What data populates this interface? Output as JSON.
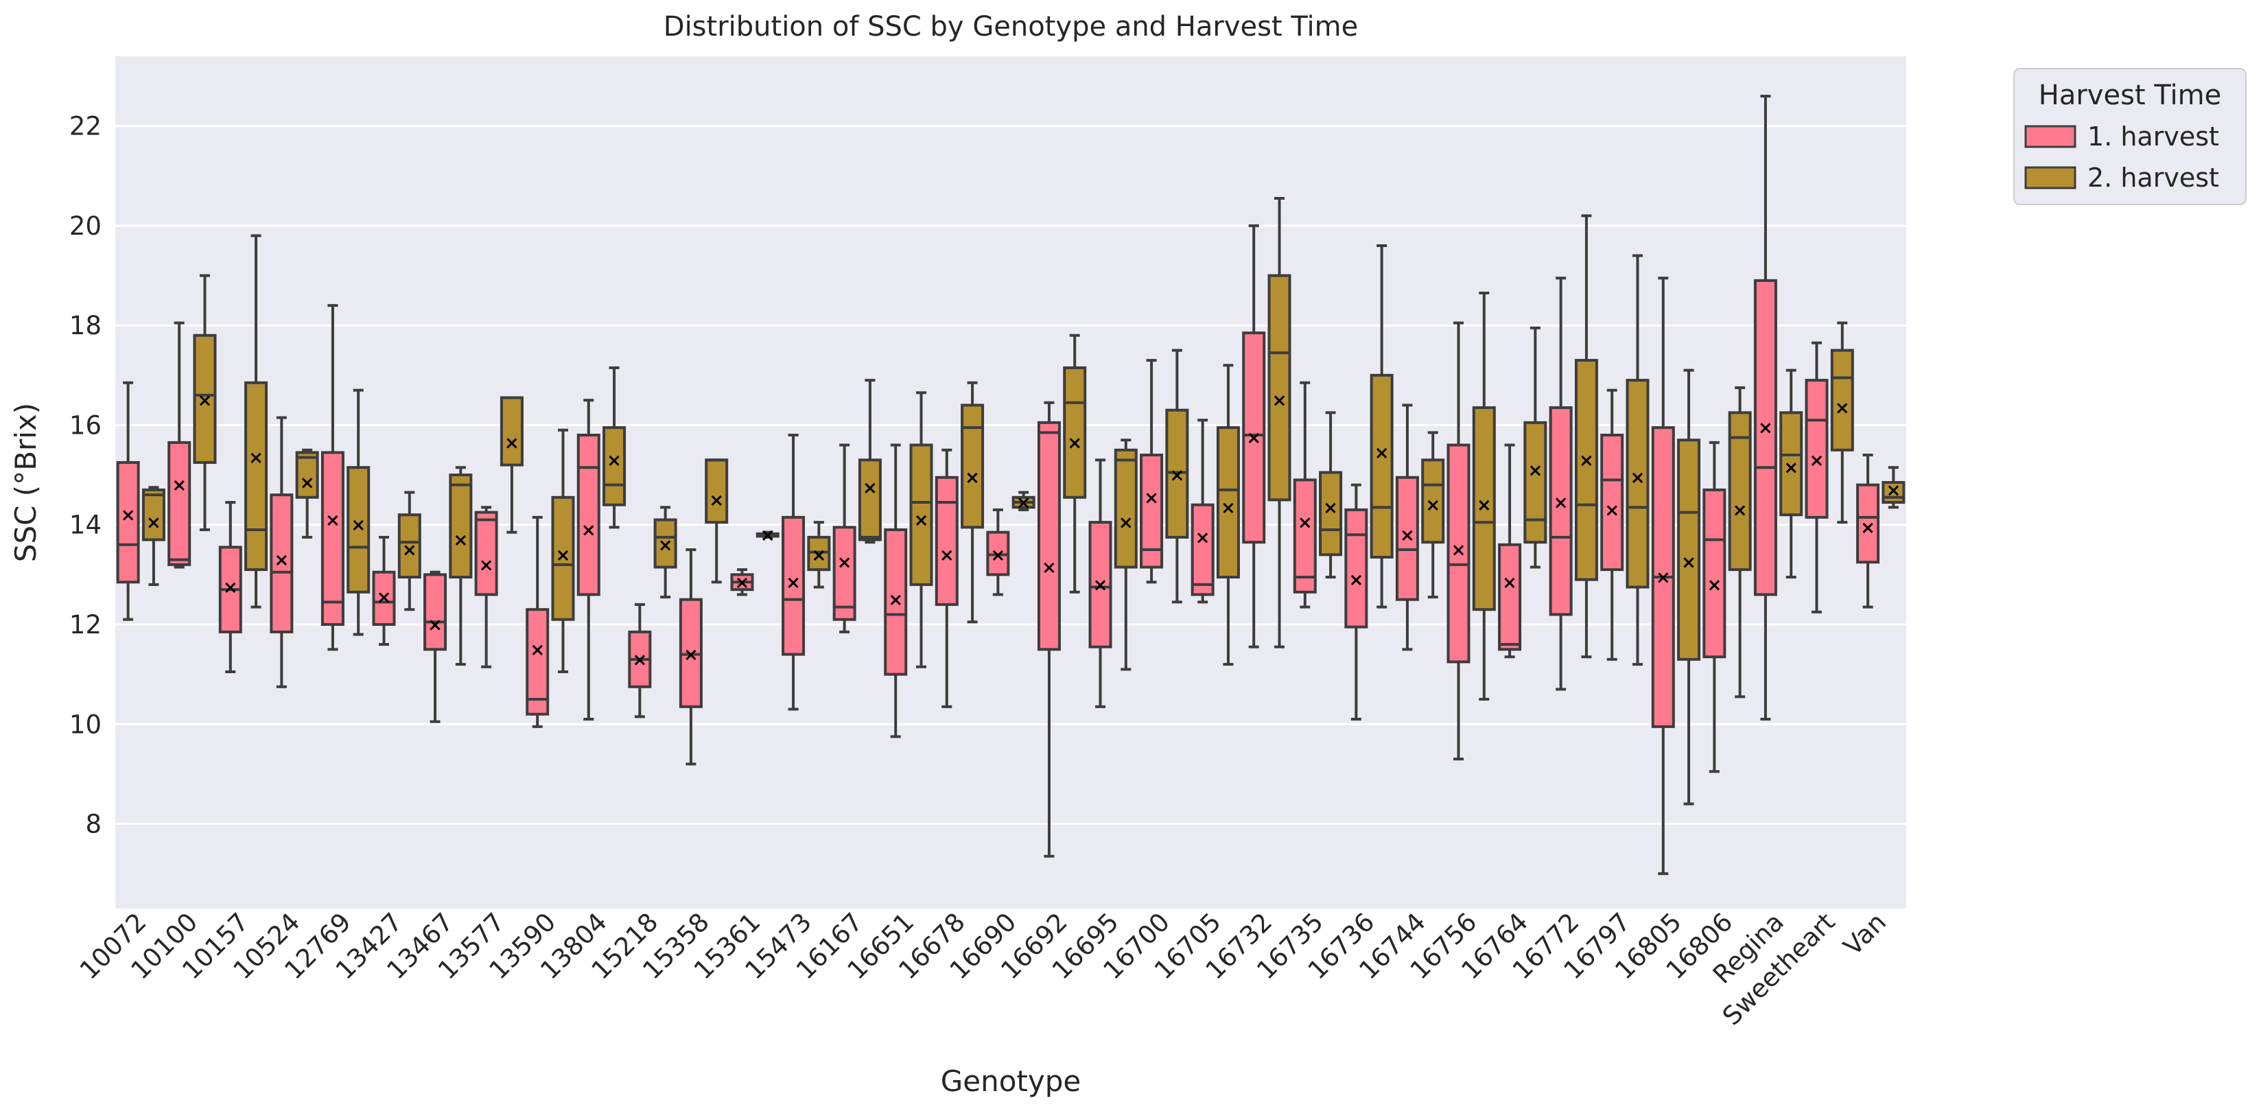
{
  "chart_data": {
    "type": "boxplot",
    "title": "Distribution of SSC by Genotype and Harvest Time",
    "xlabel": "Genotype",
    "ylabel": "SSC (°Brix)",
    "ylim": [
      6.3,
      23.4
    ],
    "yticks": [
      "8",
      "10",
      "12",
      "14",
      "16",
      "18",
      "20",
      "22"
    ],
    "grid": true,
    "legend": {
      "title": "Harvest Time",
      "position": "top-right-outside",
      "entries": [
        "1. harvest",
        "2. harvest"
      ]
    },
    "colors": {
      "h1": "#FF7A8F",
      "h2": "#B59030",
      "plot_bg": "#EAEAF2",
      "grid": "#FFFFFF",
      "line": "#3D3D3D"
    },
    "mean_marker": "×",
    "categories": [
      "10072",
      "10100",
      "10157",
      "10524",
      "12769",
      "13427",
      "13467",
      "13577",
      "13590",
      "13804",
      "15218",
      "15358",
      "15361",
      "15473",
      "16167",
      "16651",
      "16678",
      "16690",
      "16692",
      "16695",
      "16700",
      "16705",
      "16732",
      "16735",
      "16736",
      "16744",
      "16756",
      "16764",
      "16772",
      "16797",
      "16805",
      "16806",
      "Regina",
      "Sweetheart",
      "Van"
    ],
    "series": [
      {
        "name": "1. harvest",
        "boxes": [
          {
            "min": 12.1,
            "q1": 12.85,
            "median": 13.6,
            "q3": 15.25,
            "max": 16.85,
            "mean": 14.2
          },
          {
            "min": 13.15,
            "q1": 13.2,
            "median": 13.3,
            "q3": 15.65,
            "max": 18.05,
            "mean": 14.8
          },
          {
            "min": 11.05,
            "q1": 11.85,
            "median": 12.7,
            "q3": 13.55,
            "max": 14.45,
            "mean": 12.75
          },
          {
            "min": 10.75,
            "q1": 11.85,
            "median": 13.05,
            "q3": 14.6,
            "max": 16.15,
            "mean": 13.3
          },
          {
            "min": 11.5,
            "q1": 12.0,
            "median": 12.45,
            "q3": 15.45,
            "max": 18.4,
            "mean": 14.1
          },
          {
            "min": 11.6,
            "q1": 12.0,
            "median": 12.45,
            "q3": 13.05,
            "max": 13.75,
            "mean": 12.55
          },
          {
            "min": 10.05,
            "q1": 11.5,
            "median": 12.05,
            "q3": 13.0,
            "max": 13.05,
            "mean": 12.0
          },
          {
            "min": 11.15,
            "q1": 12.6,
            "median": 14.1,
            "q3": 14.25,
            "max": 14.35,
            "mean": 13.2
          },
          {
            "min": 9.95,
            "q1": 10.2,
            "median": 10.5,
            "q3": 12.3,
            "max": 14.15,
            "mean": 11.5
          },
          {
            "min": 10.1,
            "q1": 12.6,
            "median": 15.15,
            "q3": 15.8,
            "max": 16.5,
            "mean": 13.9
          },
          {
            "min": 10.15,
            "q1": 10.75,
            "median": 11.3,
            "q3": 11.85,
            "max": 12.4,
            "mean": 11.3
          },
          {
            "min": 9.2,
            "q1": 10.35,
            "median": 11.4,
            "q3": 12.5,
            "max": 13.5,
            "mean": 11.4
          },
          {
            "min": 12.6,
            "q1": 12.7,
            "median": 12.85,
            "q3": 13.0,
            "max": 13.1,
            "mean": 12.85
          },
          {
            "min": 10.3,
            "q1": 11.4,
            "median": 12.5,
            "q3": 14.15,
            "max": 15.8,
            "mean": 12.85
          },
          {
            "min": 11.85,
            "q1": 12.1,
            "median": 12.35,
            "q3": 13.95,
            "max": 15.6,
            "mean": 13.25
          },
          {
            "min": 9.75,
            "q1": 11.0,
            "median": 12.2,
            "q3": 13.9,
            "max": 15.6,
            "mean": 12.5
          },
          {
            "min": 10.35,
            "q1": 12.4,
            "median": 14.45,
            "q3": 14.95,
            "max": 15.5,
            "mean": 13.4
          },
          {
            "min": 12.6,
            "q1": 13.0,
            "median": 13.4,
            "q3": 13.85,
            "max": 14.3,
            "mean": 13.4
          },
          {
            "min": 7.35,
            "q1": 11.5,
            "median": 15.85,
            "q3": 16.05,
            "max": 16.45,
            "mean": 13.15
          },
          {
            "min": 10.35,
            "q1": 11.55,
            "median": 12.75,
            "q3": 14.05,
            "max": 15.3,
            "mean": 12.8
          },
          {
            "min": 12.85,
            "q1": 13.15,
            "median": 13.5,
            "q3": 15.4,
            "max": 17.3,
            "mean": 14.55
          },
          {
            "min": 12.45,
            "q1": 12.6,
            "median": 12.8,
            "q3": 14.4,
            "max": 16.1,
            "mean": 13.75
          },
          {
            "min": 11.55,
            "q1": 13.65,
            "median": 15.8,
            "q3": 17.85,
            "max": 20.0,
            "mean": 15.75
          },
          {
            "min": 12.35,
            "q1": 12.65,
            "median": 12.95,
            "q3": 14.9,
            "max": 16.85,
            "mean": 14.05
          },
          {
            "min": 10.1,
            "q1": 11.95,
            "median": 13.8,
            "q3": 14.3,
            "max": 14.8,
            "mean": 12.9
          },
          {
            "min": 11.5,
            "q1": 12.5,
            "median": 13.5,
            "q3": 14.95,
            "max": 16.4,
            "mean": 13.8
          },
          {
            "min": 9.3,
            "q1": 11.25,
            "median": 13.2,
            "q3": 15.6,
            "max": 18.05,
            "mean": 13.5
          },
          {
            "min": 11.35,
            "q1": 11.5,
            "median": 11.6,
            "q3": 13.6,
            "max": 15.6,
            "mean": 12.85
          },
          {
            "min": 10.7,
            "q1": 12.2,
            "median": 13.75,
            "q3": 16.35,
            "max": 18.95,
            "mean": 14.45
          },
          {
            "min": 11.3,
            "q1": 13.1,
            "median": 14.9,
            "q3": 15.8,
            "max": 16.7,
            "mean": 14.3
          },
          {
            "min": 7.0,
            "q1": 9.95,
            "median": 12.95,
            "q3": 15.95,
            "max": 18.95,
            "mean": 12.95
          },
          {
            "min": 9.05,
            "q1": 11.35,
            "median": 13.7,
            "q3": 14.7,
            "max": 15.65,
            "mean": 12.8
          },
          {
            "min": 10.1,
            "q1": 12.6,
            "median": 15.15,
            "q3": 18.9,
            "max": 22.6,
            "mean": 15.95
          },
          {
            "min": 12.25,
            "q1": 14.15,
            "median": 16.1,
            "q3": 16.9,
            "max": 17.65,
            "mean": 15.3
          },
          {
            "min": 12.35,
            "q1": 13.25,
            "median": 14.15,
            "q3": 14.8,
            "max": 15.4,
            "mean": 13.95
          }
        ]
      },
      {
        "name": "2. harvest",
        "boxes": [
          {
            "min": 12.8,
            "q1": 13.7,
            "median": 14.6,
            "q3": 14.7,
            "max": 14.75,
            "mean": 14.05
          },
          {
            "min": 13.9,
            "q1": 15.25,
            "median": 16.6,
            "q3": 17.8,
            "max": 19.0,
            "mean": 16.5
          },
          {
            "min": 12.35,
            "q1": 13.1,
            "median": 13.9,
            "q3": 16.85,
            "max": 19.8,
            "mean": 15.35
          },
          {
            "min": 13.75,
            "q1": 14.55,
            "median": 15.35,
            "q3": 15.45,
            "max": 15.5,
            "mean": 14.85
          },
          {
            "min": 11.8,
            "q1": 12.65,
            "median": 13.55,
            "q3": 15.15,
            "max": 16.7,
            "mean": 14.0
          },
          {
            "min": 12.3,
            "q1": 12.95,
            "median": 13.65,
            "q3": 14.2,
            "max": 14.65,
            "mean": 13.5
          },
          {
            "min": 11.2,
            "q1": 12.95,
            "median": 14.8,
            "q3": 15.0,
            "max": 15.15,
            "mean": 13.7
          },
          {
            "min": 13.85,
            "q1": 15.2,
            "median": 16.55,
            "q3": 16.55,
            "max": 16.55,
            "mean": 15.65
          },
          {
            "min": 11.05,
            "q1": 12.1,
            "median": 13.2,
            "q3": 14.55,
            "max": 15.9,
            "mean": 13.4
          },
          {
            "min": 13.95,
            "q1": 14.4,
            "median": 14.8,
            "q3": 15.95,
            "max": 17.15,
            "mean": 15.3
          },
          {
            "min": 12.55,
            "q1": 13.15,
            "median": 13.75,
            "q3": 14.1,
            "max": 14.35,
            "mean": 13.6
          },
          {
            "min": 12.85,
            "q1": 14.05,
            "median": 15.3,
            "q3": 15.3,
            "max": 15.3,
            "mean": 14.5
          },
          {
            "min": 13.75,
            "q1": 13.77,
            "median": 13.8,
            "q3": 13.82,
            "max": 13.85,
            "mean": 13.8
          },
          {
            "min": 12.75,
            "q1": 13.1,
            "median": 13.45,
            "q3": 13.75,
            "max": 14.05,
            "mean": 13.4
          },
          {
            "min": 13.65,
            "q1": 13.7,
            "median": 13.75,
            "q3": 15.3,
            "max": 16.9,
            "mean": 14.75
          },
          {
            "min": 11.15,
            "q1": 12.8,
            "median": 14.45,
            "q3": 15.6,
            "max": 16.65,
            "mean": 14.1
          },
          {
            "min": 12.05,
            "q1": 13.95,
            "median": 15.95,
            "q3": 16.4,
            "max": 16.85,
            "mean": 14.95
          },
          {
            "min": 14.3,
            "q1": 14.35,
            "median": 14.45,
            "q3": 14.55,
            "max": 14.65,
            "mean": 14.45
          },
          {
            "min": 12.65,
            "q1": 14.55,
            "median": 16.45,
            "q3": 17.15,
            "max": 17.8,
            "mean": 15.65
          },
          {
            "min": 11.1,
            "q1": 13.15,
            "median": 15.3,
            "q3": 15.5,
            "max": 15.7,
            "mean": 14.05
          },
          {
            "min": 12.45,
            "q1": 13.75,
            "median": 15.05,
            "q3": 16.3,
            "max": 17.5,
            "mean": 15.0
          },
          {
            "min": 11.2,
            "q1": 12.95,
            "median": 14.7,
            "q3": 15.95,
            "max": 17.2,
            "mean": 14.35
          },
          {
            "min": 11.55,
            "q1": 14.5,
            "median": 17.45,
            "q3": 19.0,
            "max": 20.55,
            "mean": 16.5
          },
          {
            "min": 12.95,
            "q1": 13.4,
            "median": 13.9,
            "q3": 15.05,
            "max": 16.25,
            "mean": 14.35
          },
          {
            "min": 12.35,
            "q1": 13.35,
            "median": 14.35,
            "q3": 17.0,
            "max": 19.6,
            "mean": 15.45
          },
          {
            "min": 12.55,
            "q1": 13.65,
            "median": 14.8,
            "q3": 15.3,
            "max": 15.85,
            "mean": 14.4
          },
          {
            "min": 10.5,
            "q1": 12.3,
            "median": 14.05,
            "q3": 16.35,
            "max": 18.65,
            "mean": 14.4
          },
          {
            "min": 13.15,
            "q1": 13.65,
            "median": 14.1,
            "q3": 16.05,
            "max": 17.95,
            "mean": 15.1
          },
          {
            "min": 11.35,
            "q1": 12.9,
            "median": 14.4,
            "q3": 17.3,
            "max": 20.2,
            "mean": 15.3
          },
          {
            "min": 11.2,
            "q1": 12.75,
            "median": 14.35,
            "q3": 16.9,
            "max": 19.4,
            "mean": 14.95
          },
          {
            "min": 8.4,
            "q1": 11.3,
            "median": 14.25,
            "q3": 15.7,
            "max": 17.1,
            "mean": 13.25
          },
          {
            "min": 10.55,
            "q1": 13.1,
            "median": 15.75,
            "q3": 16.25,
            "max": 16.75,
            "mean": 14.3
          },
          {
            "min": 12.95,
            "q1": 14.2,
            "median": 15.4,
            "q3": 16.25,
            "max": 17.1,
            "mean": 15.15
          },
          {
            "min": 14.05,
            "q1": 15.5,
            "median": 16.95,
            "q3": 17.5,
            "max": 18.05,
            "mean": 16.35
          },
          {
            "min": 14.35,
            "q1": 14.45,
            "median": 14.55,
            "q3": 14.85,
            "max": 15.15,
            "mean": 14.7
          }
        ]
      }
    ]
  }
}
